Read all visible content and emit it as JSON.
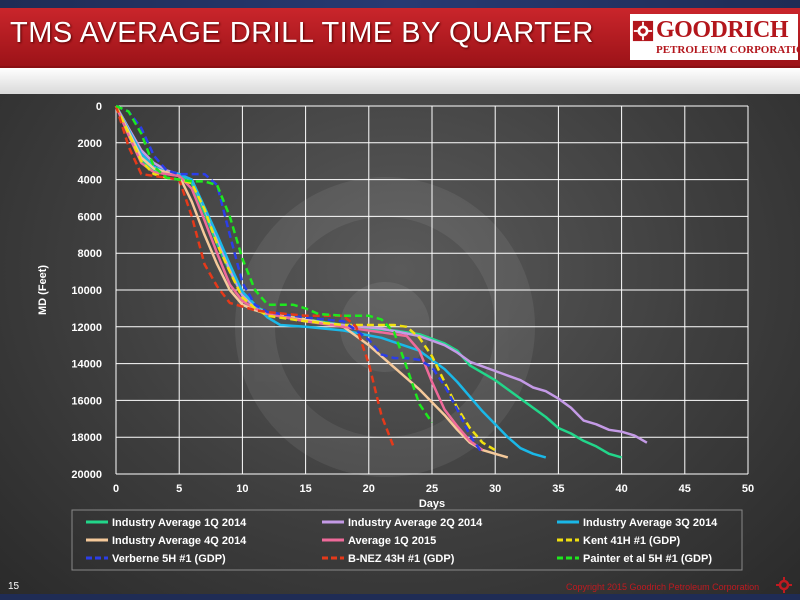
{
  "header": {
    "title": "TMS AVERAGE DRILL TIME BY QUARTER",
    "logo_name": "GOODRICH",
    "logo_sub": "PETROLEUM CORPORATION"
  },
  "footer": {
    "page_number": "15",
    "copyright": "Copyright 2015 Goodrich Petroleum Corporation"
  },
  "colors": {
    "brand_red": "#c01a20",
    "navy": "#1f2c55"
  },
  "chart_data": {
    "type": "line",
    "title": "",
    "xlabel": "Days",
    "ylabel": "MD (Feet)",
    "xlim": [
      0,
      50
    ],
    "ylim": [
      0,
      20000
    ],
    "y_inverted": true,
    "grid": true,
    "legend_position": "bottom",
    "xticks": [
      0,
      5,
      10,
      15,
      20,
      25,
      30,
      35,
      40,
      45,
      50
    ],
    "yticks": [
      0,
      2000,
      4000,
      6000,
      8000,
      10000,
      12000,
      14000,
      16000,
      18000,
      20000
    ],
    "series": [
      {
        "name": "Industry Average 1Q 2014",
        "color": "#22d68a",
        "dash": false,
        "x": [
          0,
          1,
          2,
          3,
          4,
          5,
          6,
          7,
          8,
          9,
          10,
          11,
          12,
          15,
          18,
          20,
          22,
          24,
          26,
          27,
          28,
          30,
          32,
          34,
          35,
          36,
          37,
          38,
          39,
          40
        ],
        "y": [
          0,
          1500,
          2900,
          3500,
          3700,
          3800,
          4200,
          5800,
          7500,
          9000,
          10300,
          10900,
          11200,
          11600,
          11900,
          12100,
          12200,
          12400,
          12900,
          13300,
          14100,
          14900,
          15900,
          16900,
          17500,
          17800,
          18200,
          18500,
          18900,
          19100
        ]
      },
      {
        "name": "Industry Average 2Q 2014",
        "color": "#c49ae6",
        "dash": false,
        "x": [
          0,
          1,
          2,
          3,
          4,
          5,
          6,
          7,
          8,
          9,
          10,
          11,
          12,
          15,
          18,
          21,
          24,
          26,
          27,
          28,
          30,
          32,
          33,
          34,
          35,
          36,
          37,
          38,
          39,
          40,
          41,
          42
        ],
        "y": [
          0,
          1200,
          2400,
          3100,
          3500,
          3700,
          4000,
          5600,
          7200,
          8900,
          10300,
          10900,
          11300,
          11700,
          11900,
          12100,
          12500,
          13000,
          13400,
          13900,
          14400,
          14900,
          15300,
          15500,
          15900,
          16400,
          17100,
          17300,
          17600,
          17700,
          17900,
          18300
        ]
      },
      {
        "name": "Industry Average 3Q 2014",
        "color": "#1ab8e8",
        "dash": false,
        "x": [
          0,
          1,
          2,
          3,
          4,
          5,
          6,
          7,
          8,
          9,
          10,
          11,
          12,
          13,
          15,
          18,
          21,
          24,
          26,
          27,
          28,
          29,
          30,
          31,
          32,
          33,
          34
        ],
        "y": [
          0,
          1300,
          2600,
          3300,
          3600,
          3700,
          4000,
          5500,
          7000,
          8600,
          10100,
          10800,
          11500,
          11900,
          12000,
          12200,
          12600,
          13300,
          14300,
          15000,
          15800,
          16600,
          17300,
          18000,
          18600,
          18900,
          19100
        ]
      },
      {
        "name": "Industry Average 4Q 2014",
        "color": "#f5c99a",
        "dash": false,
        "x": [
          0,
          1,
          2,
          3,
          4,
          5,
          6,
          7,
          8,
          9,
          10,
          11,
          12,
          15,
          18,
          20,
          22,
          24,
          26,
          27,
          28,
          29,
          30,
          31
        ],
        "y": [
          0,
          1400,
          2800,
          3400,
          3600,
          3800,
          5200,
          7000,
          8600,
          10000,
          10800,
          11100,
          11300,
          11600,
          12000,
          13000,
          14200,
          15400,
          16800,
          17600,
          18300,
          18700,
          18900,
          19100
        ]
      },
      {
        "name": "Average 1Q 2015",
        "color": "#ef6a9a",
        "dash": false,
        "x": [
          0,
          1,
          2,
          3,
          4,
          5,
          6,
          7,
          8,
          9,
          10,
          11,
          12,
          15,
          18,
          20,
          22,
          23,
          24,
          25,
          26,
          27,
          28,
          29
        ],
        "y": [
          0,
          1600,
          3100,
          3600,
          3700,
          3800,
          4500,
          6200,
          8000,
          9700,
          10600,
          11000,
          11300,
          11700,
          12000,
          12200,
          12400,
          12500,
          13300,
          15000,
          16500,
          17400,
          18200,
          18700
        ]
      },
      {
        "name": "Kent 41H #1 (GDP)",
        "color": "#f0e010",
        "dash": true,
        "x": [
          0,
          1,
          2,
          3,
          4,
          5,
          6,
          7,
          8,
          9,
          10,
          11,
          12,
          15,
          18,
          20,
          22,
          23,
          24,
          25,
          26,
          27,
          28,
          29,
          30
        ],
        "y": [
          0,
          1500,
          3000,
          3700,
          3900,
          4000,
          4200,
          5600,
          7500,
          9000,
          10400,
          11000,
          11400,
          11700,
          11900,
          11900,
          11900,
          12000,
          12600,
          13600,
          15000,
          16400,
          17500,
          18300,
          18700
        ]
      },
      {
        "name": "Verberne 5H #1 (GDP)",
        "color": "#2c3ee8",
        "dash": true,
        "x": [
          0,
          1,
          2,
          3,
          4,
          5,
          6,
          7,
          8,
          9,
          10,
          11,
          12,
          15,
          18,
          20,
          21,
          22,
          23,
          24,
          25,
          26,
          27,
          28,
          29
        ],
        "y": [
          0,
          300,
          1200,
          2700,
          3500,
          3700,
          3700,
          3700,
          4300,
          7000,
          9600,
          10800,
          11200,
          11500,
          11700,
          12700,
          13500,
          13700,
          13700,
          13800,
          14200,
          15200,
          16500,
          17900,
          18900
        ]
      },
      {
        "name": "B-NEZ 43H #1 (GDP)",
        "color": "#e5391a",
        "dash": true,
        "x": [
          0,
          1,
          2,
          3,
          4,
          5,
          6,
          7,
          8,
          9,
          10,
          11,
          12,
          15,
          18,
          19,
          20,
          21,
          22
        ],
        "y": [
          0,
          2200,
          3700,
          3800,
          3900,
          4000,
          6000,
          8600,
          9800,
          10700,
          10900,
          11100,
          11200,
          11400,
          11400,
          12000,
          14000,
          16800,
          18600
        ]
      },
      {
        "name": "Painter et al 5H #1 (GDP)",
        "color": "#1ee81e",
        "dash": true,
        "x": [
          0,
          1,
          2,
          3,
          4,
          5,
          6,
          7,
          8,
          9,
          10,
          11,
          12,
          14,
          15,
          16,
          18,
          20,
          21,
          22,
          23,
          24,
          25
        ],
        "y": [
          0,
          300,
          1500,
          3300,
          3900,
          4000,
          4100,
          4100,
          4300,
          6000,
          8300,
          10000,
          10800,
          10800,
          11000,
          11300,
          11400,
          11400,
          11600,
          12300,
          14200,
          16200,
          17200
        ]
      }
    ]
  }
}
